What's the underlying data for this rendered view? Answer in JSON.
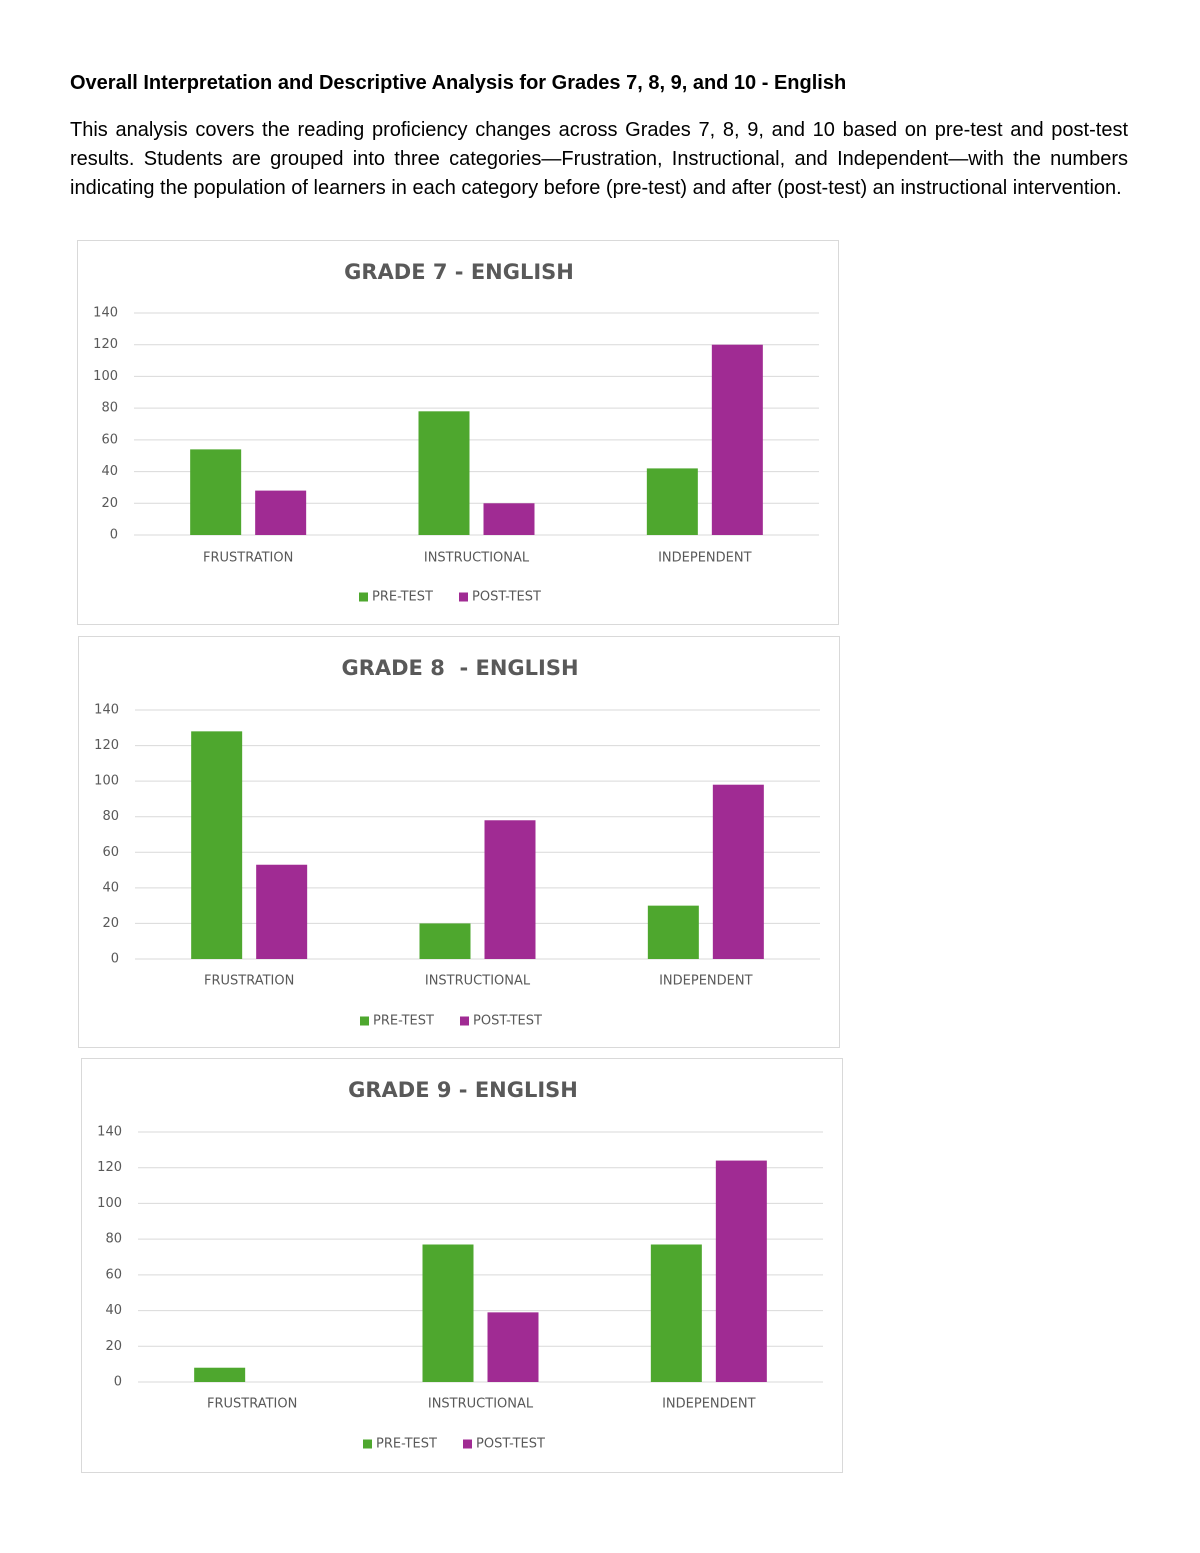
{
  "heading": "Overall Interpretation and Descriptive Analysis for Grades 7, 8, 9, and 10 - English",
  "paragraph": "This analysis covers the reading proficiency changes across Grades 7, 8, 9, and 10 based on pre-test and post-test results. Students are grouped into three categories—Frustration, Instructional, and Independent—with the numbers indicating the population of learners in each category before (pre-test) and after (post-test) an instructional intervention.",
  "chart_data": [
    {
      "type": "bar",
      "title": "GRADE 7 - ENGLISH",
      "categories": [
        "FRUSTRATION",
        "INSTRUCTIONAL",
        "INDEPENDENT"
      ],
      "series": [
        {
          "name": "PRE-TEST",
          "color": "#4ea72e",
          "values": [
            54,
            78,
            42
          ]
        },
        {
          "name": "POST-TEST",
          "color": "#a02b93",
          "values": [
            28,
            20,
            120
          ]
        }
      ],
      "ylim": [
        0,
        140
      ],
      "yticks": [
        0,
        20,
        40,
        60,
        80,
        100,
        120,
        140
      ],
      "grid": true,
      "legend": "bottom"
    },
    {
      "type": "bar",
      "title": "GRADE 8  - ENGLISH",
      "categories": [
        "FRUSTRATION",
        "INSTRUCTIONAL",
        "INDEPENDENT"
      ],
      "series": [
        {
          "name": "PRE-TEST",
          "color": "#4ea72e",
          "values": [
            128,
            20,
            30
          ]
        },
        {
          "name": "POST-TEST",
          "color": "#a02b93",
          "values": [
            53,
            78,
            98
          ]
        }
      ],
      "ylim": [
        0,
        140
      ],
      "yticks": [
        0,
        20,
        40,
        60,
        80,
        100,
        120,
        140
      ],
      "grid": true,
      "legend": "bottom"
    },
    {
      "type": "bar",
      "title": "GRADE 9 - ENGLISH",
      "categories": [
        "FRUSTRATION",
        "INSTRUCTIONAL",
        "INDEPENDENT"
      ],
      "series": [
        {
          "name": "PRE-TEST",
          "color": "#4ea72e",
          "values": [
            8,
            77,
            77
          ]
        },
        {
          "name": "POST-TEST",
          "color": "#a02b93",
          "values": [
            0,
            39,
            124
          ]
        }
      ],
      "ylim": [
        0,
        140
      ],
      "yticks": [
        0,
        20,
        40,
        60,
        80,
        100,
        120,
        140
      ],
      "grid": true,
      "legend": "bottom"
    }
  ]
}
